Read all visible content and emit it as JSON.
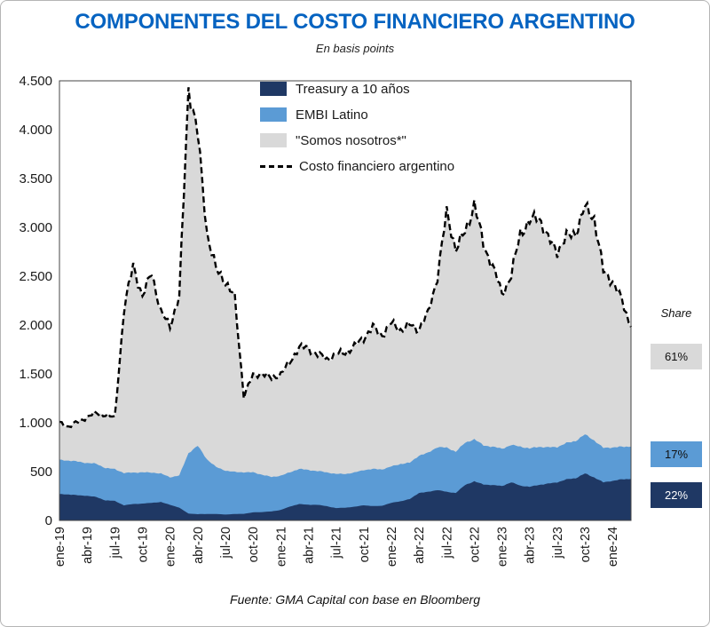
{
  "title": "COMPONENTES DEL COSTO FINANCIERO ARGENTINO",
  "subtitle": "En basis points",
  "source": "Fuente: GMA Capital con base en Bloomberg",
  "colors": {
    "title": "#0563C1",
    "treasury": "#1F3864",
    "embi": "#5B9BD5",
    "somos": "#D9D9D9",
    "line": "#000000",
    "plot_border": "#444444"
  },
  "legend": [
    {
      "label": "Treasury a 10 años",
      "color": "#1F3864"
    },
    {
      "label": "EMBI Latino",
      "color": "#5B9BD5"
    },
    {
      "label": "\"Somos nosotros*\"",
      "color": "#D9D9D9"
    },
    {
      "label": "Costo financiero argentino",
      "style": "dashed-line",
      "color": "#000000"
    }
  ],
  "share": {
    "title": "Share",
    "items": [
      {
        "series": "\"Somos nosotros*\"",
        "value": "61%",
        "color": "#D9D9D9"
      },
      {
        "series": "EMBI Latino",
        "value": "17%",
        "color": "#5B9BD5"
      },
      {
        "series": "Treasury a 10 años",
        "value": "22%",
        "color": "#1F3864"
      }
    ]
  },
  "chart_data": {
    "type": "area",
    "stacked": true,
    "title": "COMPONENTES DEL COSTO FINANCIERO ARGENTINO",
    "subtitle": "En basis points",
    "ylim": [
      0,
      4500
    ],
    "grid": false,
    "legend_position": "top-center-inside",
    "months": [
      "ene-19",
      "feb-19",
      "mar-19",
      "abr-19",
      "may-19",
      "jun-19",
      "jul-19",
      "ago-19",
      "sep-19",
      "oct-19",
      "nov-19",
      "dic-19",
      "ene-20",
      "feb-20",
      "mar-20",
      "abr-20",
      "may-20",
      "jun-20",
      "jul-20",
      "ago-20",
      "sep-20",
      "oct-20",
      "nov-20",
      "dic-20",
      "ene-21",
      "feb-21",
      "mar-21",
      "abr-21",
      "may-21",
      "jun-21",
      "jul-21",
      "ago-21",
      "sep-21",
      "oct-21",
      "nov-21",
      "dic-21",
      "ene-22",
      "feb-22",
      "mar-22",
      "abr-22",
      "may-22",
      "jun-22",
      "jul-22",
      "ago-22",
      "sep-22",
      "oct-22",
      "nov-22",
      "dic-22",
      "ene-23",
      "feb-23",
      "mar-23",
      "abr-23",
      "may-23",
      "jun-23",
      "jul-23",
      "ago-23",
      "sep-23",
      "oct-23",
      "nov-23",
      "dic-23",
      "ene-24",
      "feb-24",
      "mar-24"
    ],
    "series": [
      {
        "name": "Treasury a 10 años",
        "values": [
          270,
          266,
          258,
          252,
          240,
          205,
          200,
          155,
          168,
          172,
          180,
          188,
          160,
          130,
          70,
          64,
          66,
          66,
          60,
          66,
          68,
          82,
          86,
          92,
          108,
          142,
          168,
          160,
          160,
          146,
          126,
          130,
          140,
          156,
          146,
          150,
          180,
          196,
          218,
          282,
          292,
          312,
          292,
          282,
          362,
          400,
          368,
          362,
          352,
          390,
          356,
          344,
          364,
          376,
          390,
          420,
          432,
          480,
          440,
          390,
          405,
          420,
          425
        ]
      },
      {
        "name": "EMBI Latino",
        "values": [
          350,
          346,
          344,
          336,
          340,
          330,
          326,
          330,
          322,
          320,
          310,
          292,
          282,
          330,
          620,
          700,
          560,
          480,
          450,
          430,
          425,
          410,
          382,
          352,
          350,
          350,
          360,
          356,
          346,
          346,
          350,
          346,
          350,
          360,
          380,
          372,
          372,
          382,
          372,
          382,
          400,
          440,
          452,
          422,
          432,
          432,
          400,
          392,
          382,
          382,
          400,
          392,
          390,
          372,
          362,
          372,
          382,
          400,
          380,
          352,
          342,
          334,
          330
        ]
      },
      {
        "name": "\"Somos nosotros*\"",
        "values": [
          380,
          348,
          408,
          472,
          520,
          545,
          524,
          1665,
          2130,
          1788,
          2060,
          1640,
          1558,
          1820,
          3740,
          3186,
          2324,
          2014,
          1940,
          1784,
          787,
          988,
          1042,
          1006,
          1042,
          1128,
          1252,
          1244,
          1194,
          1158,
          1224,
          1244,
          1290,
          1354,
          1454,
          1378,
          1468,
          1372,
          1410,
          1296,
          1428,
          1748,
          2406,
          2076,
          2156,
          2408,
          2052,
          1846,
          1586,
          1728,
          2194,
          2314,
          2366,
          2132,
          2008,
          2108,
          2136,
          2320,
          2280,
          1808,
          1703,
          1496,
          1225
        ]
      }
    ],
    "line_series": {
      "name": "Costo financiero argentino",
      "values": [
        1000,
        960,
        1010,
        1060,
        1100,
        1080,
        1050,
        2150,
        2620,
        2280,
        2550,
        2120,
        2000,
        2280,
        4430,
        3950,
        2950,
        2560,
        2450,
        2280,
        1280,
        1480,
        1510,
        1450,
        1500,
        1620,
        1780,
        1760,
        1700,
        1650,
        1700,
        1720,
        1780,
        1870,
        1980,
        1900,
        2020,
        1950,
        2000,
        1960,
        2120,
        2500,
        3150,
        2780,
        2950,
        3240,
        2820,
        2600,
        2320,
        2500,
        2950,
        3050,
        3120,
        2880,
        2760,
        2900,
        2950,
        3200,
        3100,
        2550,
        2450,
        2250,
        1980
      ]
    },
    "y_ticks": [
      {
        "v": 0,
        "label": "0"
      },
      {
        "v": 500,
        "label": "500"
      },
      {
        "v": 1000,
        "label": "1.000"
      },
      {
        "v": 1500,
        "label": "1.500"
      },
      {
        "v": 2000,
        "label": "2.000"
      },
      {
        "v": 2500,
        "label": "2.500"
      },
      {
        "v": 3000,
        "label": "3.000"
      },
      {
        "v": 3500,
        "label": "3.500"
      },
      {
        "v": 4000,
        "label": "4.000"
      },
      {
        "v": 4500,
        "label": "4.500"
      }
    ],
    "x_ticks": [
      {
        "i": 0,
        "label": "ene-19"
      },
      {
        "i": 3,
        "label": "abr-19"
      },
      {
        "i": 6,
        "label": "jul-19"
      },
      {
        "i": 9,
        "label": "oct-19"
      },
      {
        "i": 12,
        "label": "ene-20"
      },
      {
        "i": 15,
        "label": "abr-20"
      },
      {
        "i": 18,
        "label": "jul-20"
      },
      {
        "i": 21,
        "label": "oct-20"
      },
      {
        "i": 24,
        "label": "ene-21"
      },
      {
        "i": 27,
        "label": "abr-21"
      },
      {
        "i": 30,
        "label": "jul-21"
      },
      {
        "i": 33,
        "label": "oct-21"
      },
      {
        "i": 36,
        "label": "ene-22"
      },
      {
        "i": 39,
        "label": "abr-22"
      },
      {
        "i": 42,
        "label": "jul-22"
      },
      {
        "i": 45,
        "label": "oct-22"
      },
      {
        "i": 48,
        "label": "ene-23"
      },
      {
        "i": 51,
        "label": "abr-23"
      },
      {
        "i": 54,
        "label": "jul-23"
      },
      {
        "i": 57,
        "label": "oct-23"
      },
      {
        "i": 60,
        "label": "ene-24"
      }
    ]
  }
}
